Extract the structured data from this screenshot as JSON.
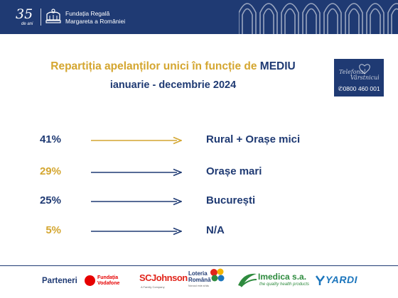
{
  "header": {
    "anniversary_number": "35",
    "anniversary_sub": "de ani",
    "org_line1": "Fundația Regală",
    "org_line2": "Margareta a României"
  },
  "slide": {
    "title_prefix": "Repartiția apelanților unici în funcție de ",
    "title_highlight": "MEDIU",
    "subtitle": "ianuarie - decembrie 2024"
  },
  "phone_card": {
    "logo_line1": "Telefonul",
    "logo_line2": "Vârstnicului",
    "number": "0800 460 001"
  },
  "rows": [
    {
      "percent": "41%",
      "label": "Rural + Orașe mici",
      "percent_color": "#1f3a73",
      "arrow_color": "#d4a630"
    },
    {
      "percent": "29%",
      "label": "Orașe mari",
      "percent_color": "#d4a630",
      "arrow_color": "#1f3a73"
    },
    {
      "percent": "25%",
      "label": "București",
      "percent_color": "#1f3a73",
      "arrow_color": "#1f3a73"
    },
    {
      "percent": "5%",
      "label": "N/A",
      "percent_color": "#d4a630",
      "arrow_color": "#1f3a73"
    }
  ],
  "footer": {
    "partners_label": "Parteneri",
    "partner_vodafone_line1": "Fundația",
    "partner_vodafone_line2": "Vodafone",
    "partner_scj": "SCJohnson",
    "partner_scj_sub": "A Family Company",
    "partner_loteria_line1": "Loteria",
    "partner_loteria_line2": "Română",
    "partner_loteria_sub": "Norocul este al tău",
    "partner_imedica": "Imedica s.a.",
    "partner_imedica_sub": "the quality health products",
    "partner_yardi": "YARDI"
  },
  "colors": {
    "navy": "#1f3a73",
    "gold": "#d4a630"
  }
}
